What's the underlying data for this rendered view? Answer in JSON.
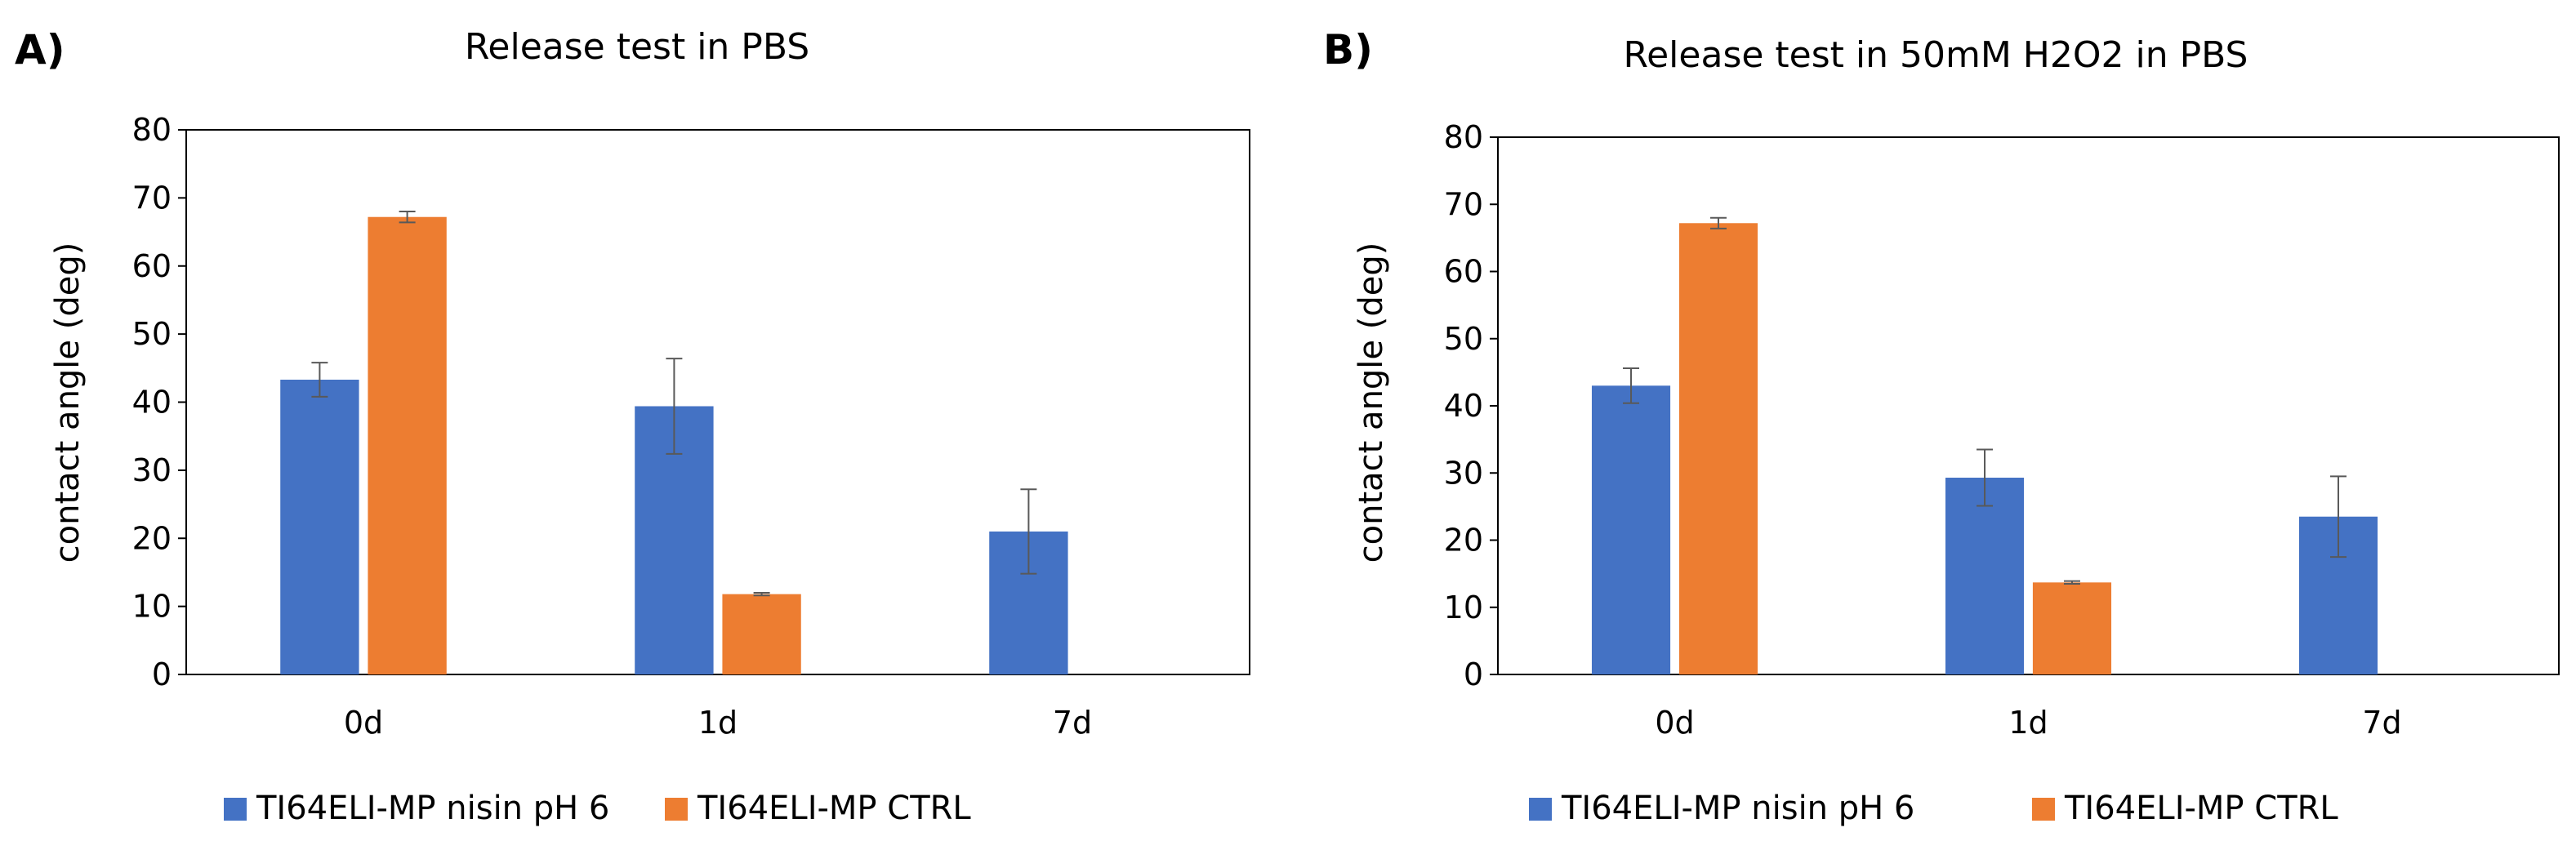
{
  "chart_data": [
    {
      "panel": "A)",
      "type": "bar",
      "title": "Release test in PBS",
      "xlabel": "",
      "ylabel": "contact angle (deg)",
      "ylim": [
        0,
        80
      ],
      "yticks": [
        0,
        10,
        20,
        30,
        40,
        50,
        60,
        70,
        80
      ],
      "categories": [
        "0d",
        "1d",
        "7d"
      ],
      "series": [
        {
          "name": "TI64ELI-MP nisin pH 6",
          "color": "#4472C4",
          "values": [
            43.3,
            39.4,
            21.0
          ],
          "errors": [
            2.5,
            7.0,
            6.2
          ]
        },
        {
          "name": "TI64ELI-MP CTRL",
          "color": "#ED7D31",
          "values": [
            67.2,
            11.8,
            null
          ],
          "errors": [
            0.8,
            0.2,
            null
          ]
        }
      ],
      "legend": "bottom",
      "grid": false
    },
    {
      "panel": "B)",
      "type": "bar",
      "title": "Release test in 50mM H2O2 in PBS",
      "xlabel": "",
      "ylabel": "contact angle (deg)",
      "ylim": [
        0,
        80
      ],
      "yticks": [
        0,
        10,
        20,
        30,
        40,
        50,
        60,
        70,
        80
      ],
      "categories": [
        "0d",
        "1d",
        "7d"
      ],
      "series": [
        {
          "name": "TI64ELI-MP nisin pH 6",
          "color": "#4472C4",
          "values": [
            43.0,
            29.3,
            23.5
          ],
          "errors": [
            2.6,
            4.2,
            6.0
          ]
        },
        {
          "name": "TI64ELI-MP CTRL",
          "color": "#ED7D31",
          "values": [
            67.2,
            13.7,
            null
          ],
          "errors": [
            0.8,
            0.2,
            null
          ]
        }
      ],
      "legend": "bottom",
      "grid": false
    }
  ]
}
